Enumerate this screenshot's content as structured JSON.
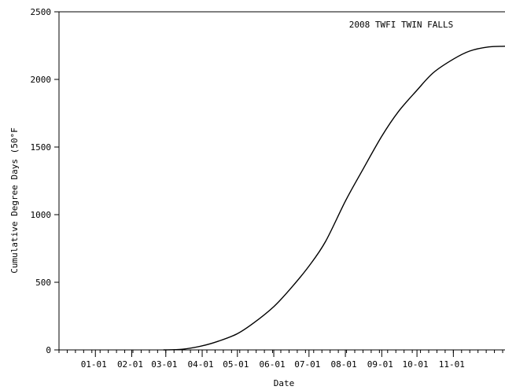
{
  "chart_data": {
    "type": "line",
    "title": "2008 TWFI TWIN FALLS",
    "xlabel": "Date",
    "ylabel": "Cumulative Degree Days (50°F",
    "ylim": [
      0,
      2500
    ],
    "xlim": [
      "2007-12-01",
      "2008-12-15"
    ],
    "grid": false,
    "x_tick_labels": [
      "01-01",
      "02-01",
      "03-01",
      "04-01",
      "05-01",
      "06-01",
      "07-01",
      "08-01",
      "09-01",
      "10-01",
      "11-01"
    ],
    "x_tick_dates": [
      "2008-01-01",
      "2008-02-01",
      "2008-03-01",
      "2008-04-01",
      "2008-05-01",
      "2008-06-01",
      "2008-07-01",
      "2008-08-01",
      "2008-09-01",
      "2008-10-01",
      "2008-11-01"
    ],
    "y_tick_labels": [
      "0",
      "500",
      "1000",
      "1500",
      "2000",
      "2500"
    ],
    "y_ticks": [
      0,
      500,
      1000,
      1500,
      2000,
      2500
    ],
    "series": [
      {
        "x": [
          "2008-02-28",
          "2008-03-15",
          "2008-04-01",
          "2008-04-15",
          "2008-05-01",
          "2008-05-15",
          "2008-06-01",
          "2008-06-15",
          "2008-07-01",
          "2008-07-15",
          "2008-08-01",
          "2008-08-15",
          "2008-09-01",
          "2008-09-15",
          "2008-10-01",
          "2008-10-15",
          "2008-11-01",
          "2008-11-15",
          "2008-12-01",
          "2008-12-15"
        ],
        "values": [
          0,
          5,
          30,
          65,
          120,
          200,
          320,
          450,
          620,
          800,
          1100,
          1320,
          1580,
          1760,
          1920,
          2050,
          2150,
          2210,
          2240,
          2245
        ],
        "color": "#000000"
      }
    ]
  }
}
